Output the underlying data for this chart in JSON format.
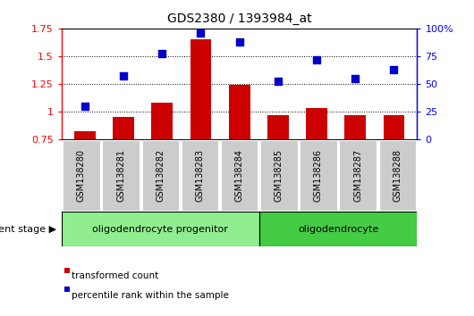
{
  "title": "GDS2380 / 1393984_at",
  "samples": [
    "GSM138280",
    "GSM138281",
    "GSM138282",
    "GSM138283",
    "GSM138284",
    "GSM138285",
    "GSM138286",
    "GSM138287",
    "GSM138288"
  ],
  "transformed_count": [
    0.82,
    0.95,
    1.08,
    1.65,
    1.24,
    0.97,
    1.03,
    0.97,
    0.97
  ],
  "percentile_rank": [
    0.3,
    0.57,
    0.77,
    0.96,
    0.88,
    0.52,
    0.72,
    0.55,
    0.63
  ],
  "bar_color": "#cc0000",
  "dot_color": "#0000cc",
  "ylim_left": [
    0.75,
    1.75
  ],
  "ylim_right": [
    0.0,
    1.0
  ],
  "yticks_left": [
    0.75,
    1.0,
    1.25,
    1.5,
    1.75
  ],
  "yticks_right": [
    0.0,
    0.25,
    0.5,
    0.75,
    1.0
  ],
  "ytick_labels_left": [
    "0.75",
    "1",
    "1.25",
    "1.5",
    "1.75"
  ],
  "ytick_labels_right": [
    "0",
    "25",
    "50",
    "75",
    "100%"
  ],
  "hlines": [
    1.0,
    1.25,
    1.5
  ],
  "groups": [
    {
      "label": "oligodendrocyte progenitor",
      "start": 0,
      "end": 5,
      "color": "#90ee90"
    },
    {
      "label": "oligodendrocyte",
      "start": 5,
      "end": 9,
      "color": "#44cc44"
    }
  ],
  "dev_stage_label": "development stage",
  "legend_items": [
    {
      "color": "#cc0000",
      "label": "transformed count"
    },
    {
      "color": "#0000cc",
      "label": "percentile rank within the sample"
    }
  ],
  "background_color": "#ffffff"
}
